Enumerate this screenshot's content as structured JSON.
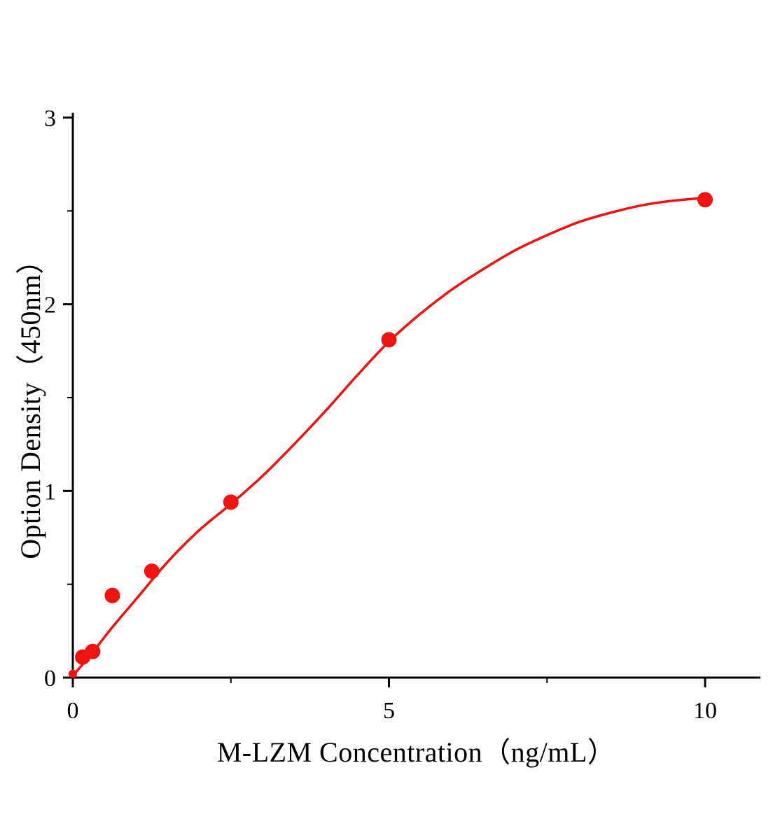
{
  "chart_data": {
    "type": "scatter",
    "title": "",
    "xlabel": "M-LZM Concentration（ng/mL）",
    "ylabel": "Option Density（450nm）",
    "xlim": [
      0,
      10
    ],
    "ylim": [
      0,
      3
    ],
    "x_ticks": [
      0,
      5,
      10
    ],
    "x_minor_ticks": [
      2.5,
      7.5
    ],
    "y_ticks": [
      0,
      1,
      2,
      3
    ],
    "y_minor_ticks": [
      0.5,
      1.5,
      2.5
    ],
    "grid": false,
    "legend": null,
    "axis_color": "#000000",
    "accent_color": "#ee1310",
    "series": [
      {
        "name": "standard-points",
        "type": "scatter",
        "color": "#ee1310",
        "x": [
          0,
          0.156,
          0.313,
          0.625,
          1.25,
          2.5,
          5,
          10
        ],
        "y": [
          0.02,
          0.11,
          0.14,
          0.44,
          0.57,
          0.94,
          1.81,
          2.56
        ]
      },
      {
        "name": "fitted-curve",
        "type": "line",
        "color": "#ee1310",
        "x": [
          0,
          0.3,
          0.625,
          1,
          1.5,
          2,
          2.5,
          3,
          3.5,
          4,
          4.5,
          5,
          5.5,
          6,
          6.5,
          7,
          7.5,
          8,
          8.5,
          9,
          9.5,
          10
        ],
        "y": [
          0.01,
          0.13,
          0.27,
          0.42,
          0.62,
          0.79,
          0.93,
          1.08,
          1.25,
          1.43,
          1.62,
          1.8,
          1.95,
          2.08,
          2.19,
          2.29,
          2.37,
          2.44,
          2.49,
          2.53,
          2.555,
          2.57
        ]
      }
    ]
  }
}
